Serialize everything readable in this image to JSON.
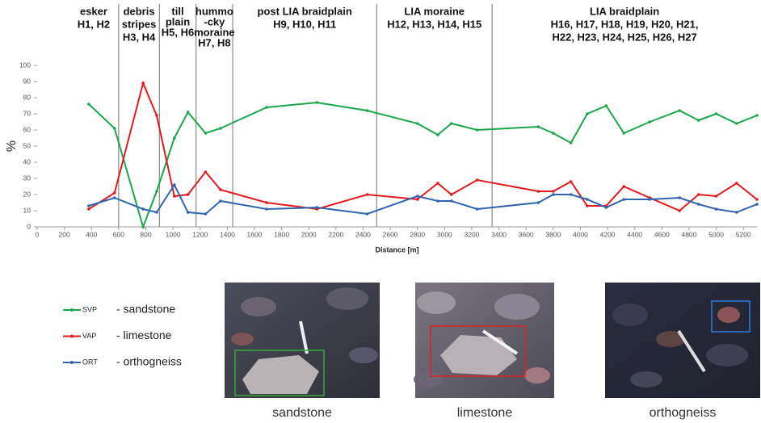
{
  "chart_data": {
    "type": "line",
    "x_label": "Distance [m]",
    "y_label": "%",
    "xlim": [
      0,
      5300
    ],
    "ylim": [
      0,
      100
    ],
    "xticks": [
      0,
      200,
      400,
      600,
      800,
      1000,
      1200,
      1400,
      1600,
      1800,
      2000,
      2200,
      2400,
      2600,
      2800,
      3000,
      3200,
      3400,
      3600,
      3800,
      4000,
      4200,
      4400,
      4600,
      4800,
      5000,
      5200
    ],
    "yticks": [
      0,
      10,
      20,
      30,
      40,
      50,
      60,
      70,
      80,
      90,
      100
    ],
    "x": [
      380,
      570,
      780,
      880,
      1010,
      1110,
      1240,
      1350,
      1690,
      2060,
      2430,
      2800,
      2950,
      3050,
      3240,
      3690,
      3800,
      3930,
      4050,
      4190,
      4320,
      4510,
      4730,
      4870,
      5000,
      5150,
      5300
    ],
    "series": [
      {
        "name": "SVP",
        "description": "- sandstone",
        "color": "#1aa64a",
        "values": [
          76,
          61,
          0,
          22,
          55,
          71,
          58,
          61,
          74,
          77,
          72,
          64,
          57,
          64,
          60,
          62,
          58,
          52,
          70,
          75,
          58,
          65,
          72,
          66,
          70,
          64,
          69
        ]
      },
      {
        "name": "VAP",
        "description": "- limestone",
        "color": "#e31a1c",
        "values": [
          11,
          21,
          89,
          69,
          19,
          20,
          34,
          23,
          15,
          11,
          20,
          17,
          27,
          20,
          29,
          22,
          22,
          28,
          13,
          13,
          25,
          18,
          10,
          20,
          19,
          27,
          17
        ]
      },
      {
        "name": "ORT",
        "description": "- orthogneiss",
        "color": "#2e64b0",
        "values": [
          13,
          18,
          11,
          9,
          26,
          9,
          8,
          16,
          11,
          12,
          8,
          19,
          16,
          16,
          11,
          15,
          20,
          20,
          17,
          12,
          17,
          17,
          18,
          14,
          11,
          9,
          14
        ]
      }
    ],
    "dividers": [
      600,
      900,
      1170,
      1440,
      2500,
      3350
    ],
    "zones": [
      [
        "esker",
        "H1, H2"
      ],
      [
        "debris",
        "stripes",
        "H3, H4"
      ],
      [
        "till",
        "plain",
        "H5, H6"
      ],
      [
        "hummo",
        "-cky",
        "moraine",
        "H7, H8"
      ],
      [
        "post LIA braidplain",
        "H9, H10, H11"
      ],
      [
        "LIA moraine",
        "H12, H13, H14, H15"
      ],
      [
        "LIA braidplain",
        "H16, H17, H18, H19, H20, H21,",
        "H22, H23, H24, H25, H26, H27"
      ]
    ]
  },
  "photos": [
    {
      "caption": "sandstone"
    },
    {
      "caption": "limestone"
    },
    {
      "caption": "orthogneiss"
    }
  ]
}
